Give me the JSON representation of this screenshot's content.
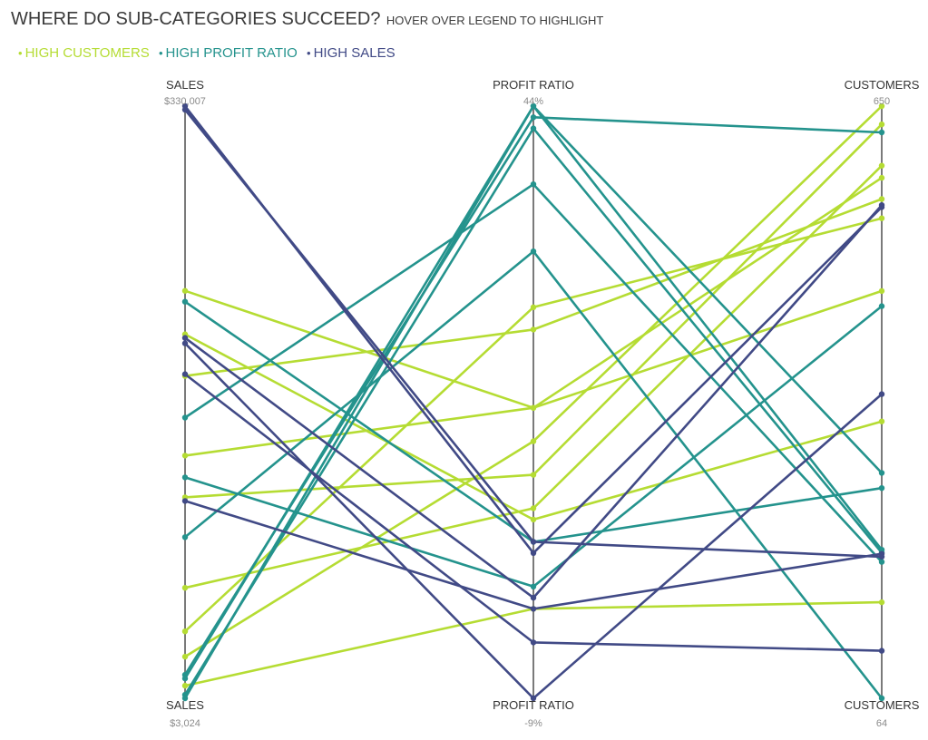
{
  "header": {
    "title": "WHERE DO SUB-CATEGORIES SUCCEED?",
    "subtitle": "HOVER OVER LEGEND TO HIGHLIGHT"
  },
  "legend": [
    {
      "key": "high_customers",
      "label": "HIGH CUSTOMERS",
      "color": "#b5dc33",
      "dot": "•"
    },
    {
      "key": "high_profit_ratio",
      "label": "HIGH PROFIT RATIO",
      "color": "#24938d",
      "dot": "•"
    },
    {
      "key": "high_sales",
      "label": "HIGH SALES",
      "color": "#414a86",
      "dot": "•"
    }
  ],
  "chart_data": {
    "type": "parallel-coordinates",
    "title": "WHERE DO SUB-CATEGORIES SUCCEED?",
    "subtitle": "HOVER OVER LEGEND TO HIGHLIGHT",
    "axes": [
      {
        "name": "SALES",
        "max": 330007,
        "min": 3024,
        "max_label": "$330,007",
        "min_label": "$3,024"
      },
      {
        "name": "PROFIT RATIO",
        "max": 44,
        "min": -9,
        "max_label": "44%",
        "min_label": "-9%"
      },
      {
        "name": "CUSTOMERS",
        "max": 650,
        "min": 64,
        "max_label": "650",
        "min_label": "64"
      }
    ],
    "series": [
      {
        "group": "high_customers",
        "values": [
          228000,
          17,
          579
        ]
      },
      {
        "group": "high_customers",
        "values": [
          204000,
          7,
          338
        ]
      },
      {
        "group": "high_customers",
        "values": [
          181000,
          24,
          558
        ]
      },
      {
        "group": "high_customers",
        "values": [
          137000,
          17,
          467
        ]
      },
      {
        "group": "high_customers",
        "values": [
          114000,
          11,
          632
        ]
      },
      {
        "group": "high_customers",
        "values": [
          40000,
          26,
          539
        ]
      },
      {
        "group": "high_customers",
        "values": [
          64000,
          8,
          591
        ]
      },
      {
        "group": "high_customers",
        "values": [
          26000,
          14,
          650
        ]
      },
      {
        "group": "high_customers",
        "values": [
          10000,
          -1,
          159
        ]
      },
      {
        "group": "high_profit_ratio",
        "values": [
          158000,
          37,
          199
        ]
      },
      {
        "group": "high_profit_ratio",
        "values": [
          92000,
          31,
          64
        ]
      },
      {
        "group": "high_profit_ratio",
        "values": [
          16000,
          43,
          624
        ]
      },
      {
        "group": "high_profit_ratio",
        "values": [
          14000,
          44,
          287
        ]
      },
      {
        "group": "high_profit_ratio",
        "values": [
          5000,
          42,
          208
        ]
      },
      {
        "group": "high_profit_ratio",
        "values": [
          3024,
          44,
          211
        ]
      },
      {
        "group": "high_profit_ratio",
        "values": [
          222000,
          5,
          272
        ]
      },
      {
        "group": "high_profit_ratio",
        "values": [
          125000,
          1,
          452
        ]
      },
      {
        "group": "high_sales",
        "values": [
          330007,
          4,
          550
        ]
      },
      {
        "group": "high_sales",
        "values": [
          328000,
          5,
          204
        ]
      },
      {
        "group": "high_sales",
        "values": [
          199000,
          -9,
          365
        ]
      },
      {
        "group": "high_sales",
        "values": [
          182000,
          -4,
          111
        ]
      },
      {
        "group": "high_sales",
        "values": [
          112000,
          -1,
          207
        ]
      },
      {
        "group": "high_sales",
        "values": [
          202000,
          0,
          552
        ]
      }
    ]
  }
}
